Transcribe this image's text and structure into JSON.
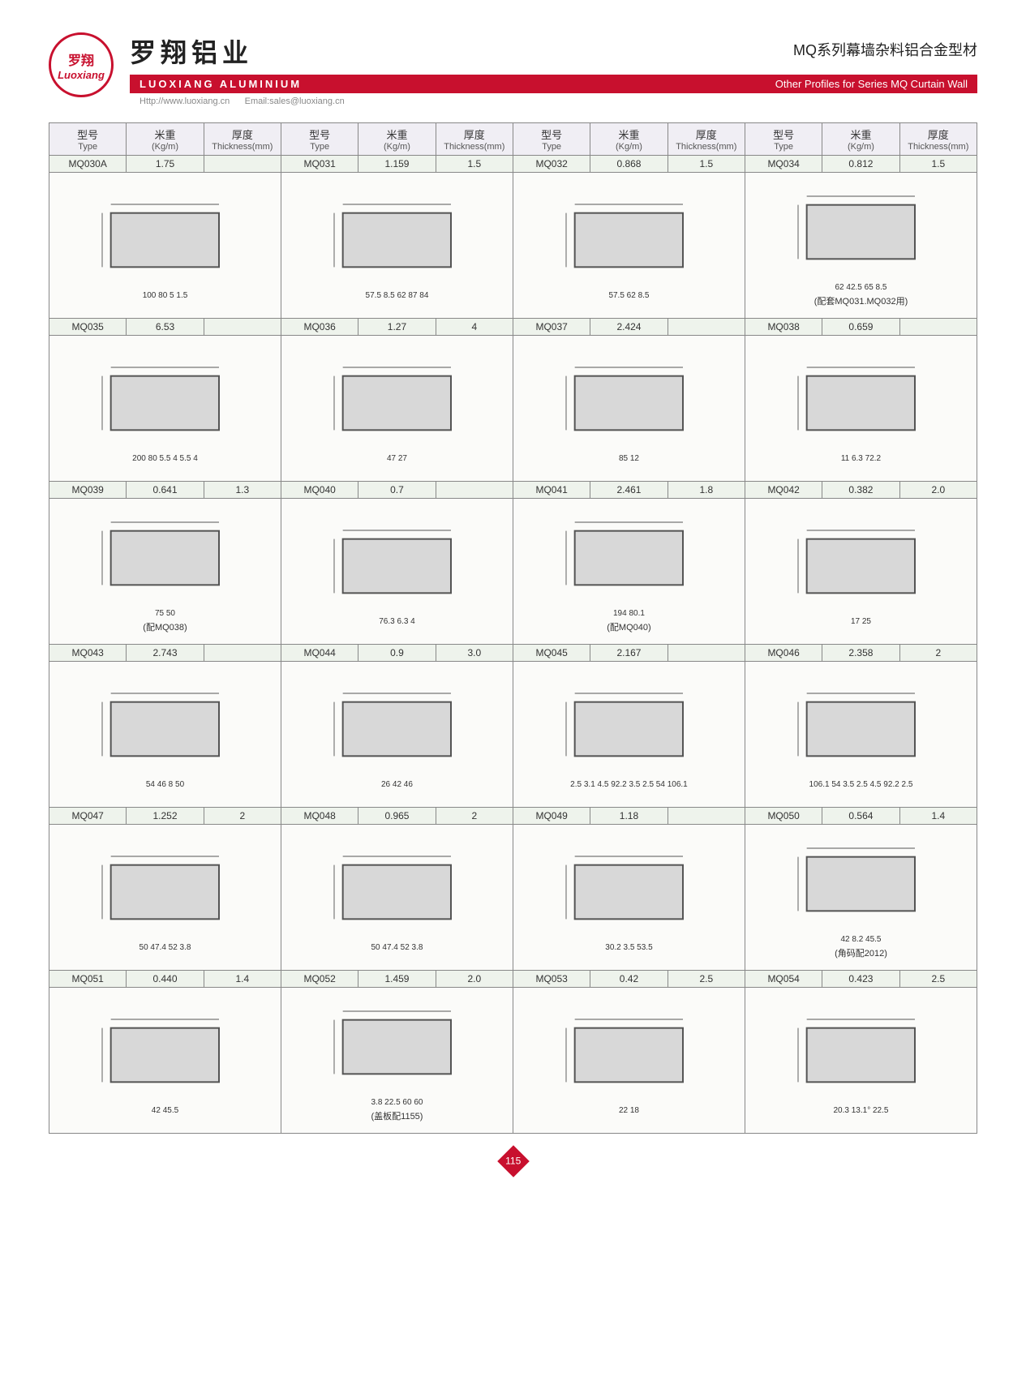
{
  "header": {
    "logo_cn": "罗翔",
    "logo_en": "Luoxiang",
    "title_cn": "罗翔铝业",
    "bar_left": "LUOXIANG ALUMINIUM",
    "sub_url": "Http://www.luoxiang.cn",
    "sub_email": "Email:sales@luoxiang.cn",
    "right_cn": "MQ系列幕墙杂料铝合金型材",
    "right_en": "Other Profiles for Series MQ Curtain Wall"
  },
  "columns": [
    {
      "cn": "型号",
      "en": "Type"
    },
    {
      "cn": "米重",
      "en": "(Kg/m)"
    },
    {
      "cn": "厚度",
      "en": "Thickness(mm)"
    }
  ],
  "rows": [
    [
      {
        "type": "MQ030A",
        "kgm": "1.75",
        "thk": "",
        "dims": [
          "100",
          "80",
          "5",
          "1.5"
        ],
        "note": ""
      },
      {
        "type": "MQ031",
        "kgm": "1.159",
        "thk": "1.5",
        "dims": [
          "57.5",
          "8.5",
          "62",
          "87",
          "84"
        ],
        "note": ""
      },
      {
        "type": "MQ032",
        "kgm": "0.868",
        "thk": "1.5",
        "dims": [
          "57.5",
          "62",
          "8.5"
        ],
        "note": ""
      },
      {
        "type": "MQ034",
        "kgm": "0.812",
        "thk": "1.5",
        "dims": [
          "62",
          "42.5",
          "65",
          "8.5"
        ],
        "note": "(配套MQ031.MQ032用)"
      }
    ],
    [
      {
        "type": "MQ035",
        "kgm": "6.53",
        "thk": "",
        "dims": [
          "200",
          "80",
          "5.5",
          "4",
          "5.5",
          "4"
        ],
        "note": ""
      },
      {
        "type": "MQ036",
        "kgm": "1.27",
        "thk": "4",
        "dims": [
          "47",
          "27"
        ],
        "note": ""
      },
      {
        "type": "MQ037",
        "kgm": "2.424",
        "thk": "",
        "dims": [
          "85",
          "12"
        ],
        "note": ""
      },
      {
        "type": "MQ038",
        "kgm": "0.659",
        "thk": "",
        "dims": [
          "11",
          "6.3",
          "72.2"
        ],
        "note": ""
      }
    ],
    [
      {
        "type": "MQ039",
        "kgm": "0.641",
        "thk": "1.3",
        "dims": [
          "75",
          "50"
        ],
        "note": "(配MQ038)"
      },
      {
        "type": "MQ040",
        "kgm": "0.7",
        "thk": "",
        "dims": [
          "76.3",
          "6.3",
          "4"
        ],
        "note": ""
      },
      {
        "type": "MQ041",
        "kgm": "2.461",
        "thk": "1.8",
        "dims": [
          "194",
          "80.1"
        ],
        "note": "(配MQ040)"
      },
      {
        "type": "MQ042",
        "kgm": "0.382",
        "thk": "2.0",
        "dims": [
          "17",
          "25"
        ],
        "note": ""
      }
    ],
    [
      {
        "type": "MQ043",
        "kgm": "2.743",
        "thk": "",
        "dims": [
          "54",
          "46",
          "8",
          "50"
        ],
        "note": ""
      },
      {
        "type": "MQ044",
        "kgm": "0.9",
        "thk": "3.0",
        "dims": [
          "26",
          "42",
          "46"
        ],
        "note": ""
      },
      {
        "type": "MQ045",
        "kgm": "2.167",
        "thk": "",
        "dims": [
          "2.5",
          "3.1",
          "4.5",
          "92.2",
          "3.5",
          "2.5",
          "54",
          "106.1"
        ],
        "note": ""
      },
      {
        "type": "MQ046",
        "kgm": "2.358",
        "thk": "2",
        "dims": [
          "106.1",
          "54",
          "3.5",
          "2.5",
          "4.5",
          "92.2",
          "2.5"
        ],
        "note": ""
      }
    ],
    [
      {
        "type": "MQ047",
        "kgm": "1.252",
        "thk": "2",
        "dims": [
          "50",
          "47.4",
          "52",
          "3.8"
        ],
        "note": ""
      },
      {
        "type": "MQ048",
        "kgm": "0.965",
        "thk": "2",
        "dims": [
          "50",
          "47.4",
          "52",
          "3.8"
        ],
        "note": ""
      },
      {
        "type": "MQ049",
        "kgm": "1.18",
        "thk": "",
        "dims": [
          "30.2",
          "3.5",
          "53.5"
        ],
        "note": ""
      },
      {
        "type": "MQ050",
        "kgm": "0.564",
        "thk": "1.4",
        "dims": [
          "42",
          "8.2",
          "45.5"
        ],
        "note": "(角码配2012)"
      }
    ],
    [
      {
        "type": "MQ051",
        "kgm": "0.440",
        "thk": "1.4",
        "dims": [
          "42",
          "45.5"
        ],
        "note": ""
      },
      {
        "type": "MQ052",
        "kgm": "1.459",
        "thk": "2.0",
        "dims": [
          "3.8",
          "22.5",
          "60",
          "60"
        ],
        "note": "(盖板配1155)"
      },
      {
        "type": "MQ053",
        "kgm": "0.42",
        "thk": "2.5",
        "dims": [
          "22",
          "18"
        ],
        "note": ""
      },
      {
        "type": "MQ054",
        "kgm": "0.423",
        "thk": "2.5",
        "dims": [
          "20.3",
          "13.1°",
          "22.5"
        ],
        "note": ""
      }
    ]
  ],
  "page_number": "115",
  "colors": {
    "brand_red": "#c8102e",
    "header_bg": "#f0eef4",
    "row_alt1": "#f3f1f6",
    "row_alt2": "#f3f6f2",
    "spec_bg": "#eef3ec",
    "border": "#888888"
  }
}
